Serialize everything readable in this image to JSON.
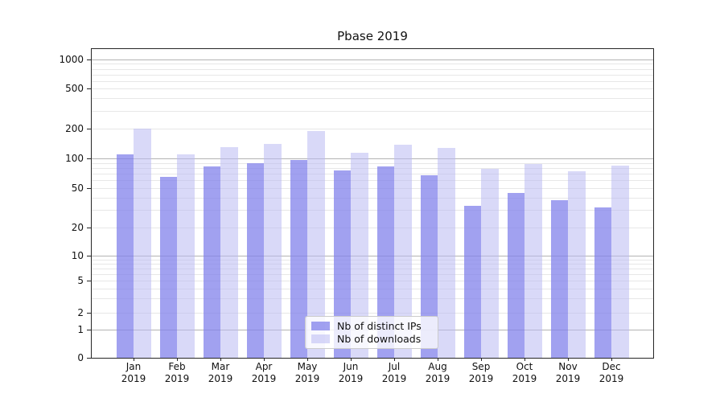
{
  "title": "Pbase 2019",
  "chart_data": {
    "type": "bar",
    "title": "Pbase 2019",
    "categories": [
      "Jan 2019",
      "Feb 2019",
      "Mar 2019",
      "Apr 2019",
      "May 2019",
      "Jun 2019",
      "Jul 2019",
      "Aug 2019",
      "Sep 2019",
      "Oct 2019",
      "Nov 2019",
      "Dec 2019"
    ],
    "series": [
      {
        "name": "Nb of distinct IPs",
        "color": "rgba(130,130,235,0.75)",
        "values": [
          110,
          65,
          83,
          90,
          97,
          75,
          83,
          67,
          33,
          45,
          38,
          32
        ]
      },
      {
        "name": "Nb of downloads",
        "color": "rgba(185,185,242,0.55)",
        "values": [
          200,
          110,
          130,
          140,
          190,
          113,
          137,
          127,
          78,
          88,
          74,
          84
        ]
      }
    ],
    "y_axis": {
      "scale": "symlog",
      "ticks": [
        0,
        1,
        2,
        5,
        10,
        20,
        50,
        100,
        200,
        500,
        1000
      ],
      "range": [
        0,
        1200
      ]
    },
    "x_axis": {
      "label": ""
    },
    "grid": "both",
    "legend_position": "lower center",
    "colors": {
      "grid_major": "#b3b3b3",
      "grid_minor": "#e7e7e7",
      "spine": "#262626",
      "text": "#111111"
    }
  }
}
